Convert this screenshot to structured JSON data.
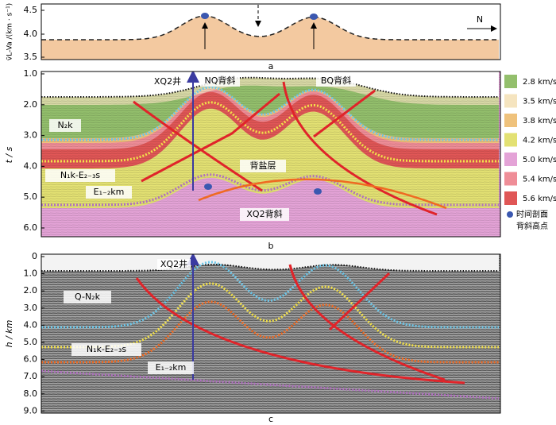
{
  "panel_a": {
    "label": "a",
    "y_axis_label": "v̄L-Va /(km · s⁻¹)",
    "yticks": [
      "4.5",
      "4.0",
      "3.5"
    ],
    "north": "N"
  },
  "panel_b": {
    "label": "b",
    "y_axis_label": "t / s",
    "yticks": [
      "1.0",
      "2.0",
      "3.0",
      "4.0",
      "5.0",
      "6.0"
    ],
    "well": "XQ2井",
    "nq": "NQ背斜",
    "bq": "BQ背斜",
    "unit1": "N₂k",
    "unit2": "N₁k-E₂₋₃s",
    "unit3": "E₁₋₂km",
    "salt": "背盐层",
    "xq2": "XQ2背斜"
  },
  "panel_c": {
    "label": "c",
    "y_axis_label": "h / km",
    "yticks": [
      "0",
      "1.0",
      "2.0",
      "3.0",
      "4.0",
      "5.0",
      "6.0",
      "7.0",
      "8.0",
      "9.0"
    ],
    "well": "XQ2井",
    "unit1": "Q-N₂k",
    "unit2": "N₁k-E₂₋₃s",
    "unit3": "E₁₋₂km"
  },
  "legend": {
    "items": [
      {
        "label": "2.8 km/s",
        "color": "#93bf6c"
      },
      {
        "label": "3.5 km/s",
        "color": "#f5e4bf"
      },
      {
        "label": "3.8 km/s",
        "color": "#efc27c"
      },
      {
        "label": "4.2 km/s",
        "color": "#e3e173"
      },
      {
        "label": "5.0 km/s",
        "color": "#e4a3d7"
      },
      {
        "label": "5.4 km/s",
        "color": "#ef8d97"
      },
      {
        "label": "5.6 km/s",
        "color": "#e05656"
      }
    ],
    "marker_label": [
      "时间剖面",
      "背斜高点"
    ]
  }
}
